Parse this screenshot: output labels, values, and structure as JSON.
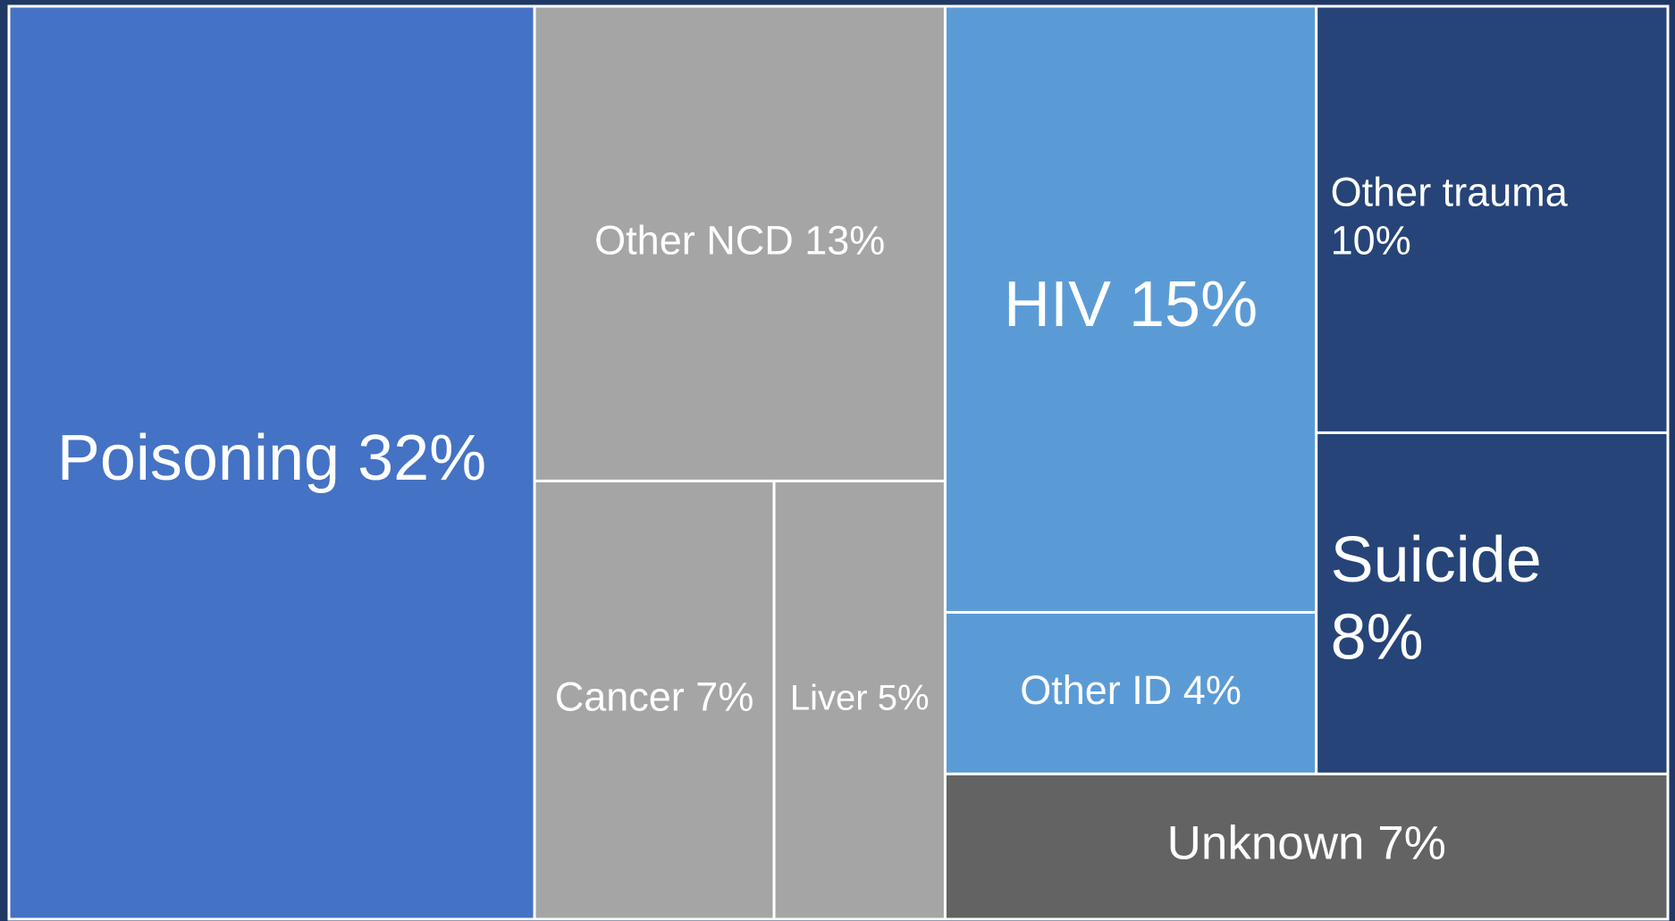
{
  "chart_data": {
    "type": "treemap",
    "categories": [
      "Poisoning",
      "Other NCD",
      "Cancer",
      "Liver",
      "HIV",
      "Other ID",
      "Other trauma",
      "Suicide",
      "Unknown"
    ],
    "values": [
      32,
      13,
      7,
      5,
      15,
      4,
      10,
      8,
      7
    ],
    "value_labels": [
      "32%",
      "13%",
      "7%",
      "5%",
      "15%",
      "4%",
      "10%",
      "8%",
      "7%"
    ],
    "colors": [
      "#4472c4",
      "#a5a5a5",
      "#a5a5a5",
      "#a5a5a5",
      "#5b9bd5",
      "#5b9bd5",
      "#264478",
      "#264478",
      "#636363"
    ]
  }
}
